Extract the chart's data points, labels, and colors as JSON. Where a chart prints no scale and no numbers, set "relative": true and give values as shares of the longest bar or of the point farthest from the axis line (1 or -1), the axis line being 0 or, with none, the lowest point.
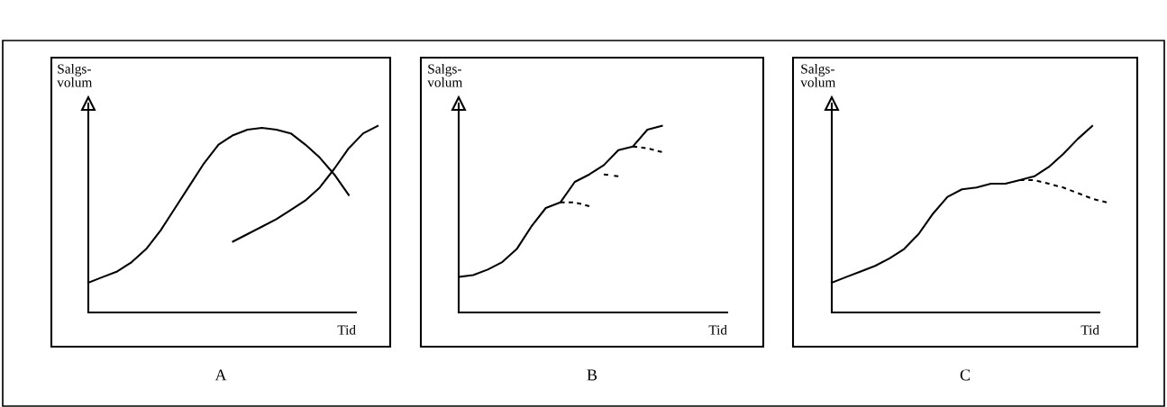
{
  "chart_data": [
    {
      "type": "line",
      "title": "A",
      "xlabel": "Tid",
      "ylabel": "Salgs-\nvolum",
      "relative": true,
      "tick_labels": false,
      "categories": [
        null,
        null,
        null,
        null,
        null,
        null,
        null,
        null,
        null,
        null,
        null,
        null,
        null,
        null,
        null,
        null,
        null,
        null,
        null,
        null,
        null
      ],
      "series": [
        {
          "color": "#000000",
          "line_style": "solid",
          "values": [
            0.16,
            0.19,
            0.22,
            0.27,
            0.34,
            0.44,
            0.56,
            0.68,
            0.8,
            0.9,
            0.95,
            0.98,
            0.99,
            0.98,
            0.96,
            0.9,
            0.83,
            0.74,
            0.63,
            null,
            null
          ]
        },
        {
          "color": "#000000",
          "line_style": "solid",
          "values": [
            null,
            null,
            null,
            null,
            null,
            null,
            null,
            null,
            null,
            null,
            0.38,
            0.42,
            0.46,
            0.5,
            0.55,
            0.6,
            0.67,
            0.77,
            0.88,
            0.96,
            1.0
          ]
        }
      ]
    },
    {
      "type": "line",
      "title": "B",
      "xlabel": "Tid",
      "ylabel": "Salgs-\nvolum",
      "relative": true,
      "tick_labels": false,
      "categories": [
        null,
        null,
        null,
        null,
        null,
        null,
        null,
        null,
        null,
        null,
        null,
        null,
        null,
        null,
        null,
        null,
        null,
        null,
        null,
        null,
        null
      ],
      "series": [
        {
          "color": "#000000",
          "line_style": "solid",
          "values": [
            0.19,
            0.2,
            0.23,
            0.27,
            0.34,
            0.46,
            0.56,
            0.59,
            0.7,
            0.74,
            0.79,
            0.87,
            0.89,
            0.98,
            1.0,
            null,
            null,
            null,
            null,
            null,
            null
          ]
        },
        {
          "color": "#000000",
          "line_style": "dashed",
          "values": [
            null,
            null,
            null,
            null,
            null,
            null,
            null,
            0.59,
            0.59,
            0.57,
            null,
            null,
            null,
            null,
            null,
            null,
            null,
            null,
            null,
            null,
            null
          ]
        },
        {
          "color": "#000000",
          "line_style": "dashed",
          "values": [
            null,
            null,
            null,
            null,
            null,
            null,
            null,
            null,
            null,
            null,
            0.74,
            0.73,
            null,
            null,
            null,
            null,
            null,
            null,
            null,
            null,
            null
          ]
        },
        {
          "color": "#000000",
          "line_style": "dashed",
          "values": [
            null,
            null,
            null,
            null,
            null,
            null,
            null,
            null,
            null,
            null,
            null,
            null,
            0.89,
            0.88,
            0.86,
            null,
            null,
            null,
            null,
            null,
            null
          ]
        }
      ]
    },
    {
      "type": "line",
      "title": "C",
      "xlabel": "Tid",
      "ylabel": "Salgs-\nvolum",
      "relative": true,
      "tick_labels": false,
      "categories": [
        null,
        null,
        null,
        null,
        null,
        null,
        null,
        null,
        null,
        null,
        null,
        null,
        null,
        null,
        null,
        null,
        null,
        null,
        null,
        null,
        null
      ],
      "series": [
        {
          "color": "#000000",
          "line_style": "solid",
          "values": [
            0.16,
            0.19,
            0.22,
            0.25,
            0.29,
            0.34,
            0.42,
            0.53,
            0.62,
            0.66,
            0.67,
            0.69,
            0.69,
            0.71,
            0.73,
            0.78,
            0.85,
            0.93,
            1.0,
            null,
            null
          ]
        },
        {
          "color": "#000000",
          "line_style": "dashed",
          "values": [
            null,
            null,
            null,
            null,
            null,
            null,
            null,
            null,
            null,
            null,
            null,
            null,
            null,
            0.71,
            0.71,
            0.69,
            0.67,
            0.64,
            0.61,
            0.59,
            null
          ]
        }
      ]
    }
  ]
}
